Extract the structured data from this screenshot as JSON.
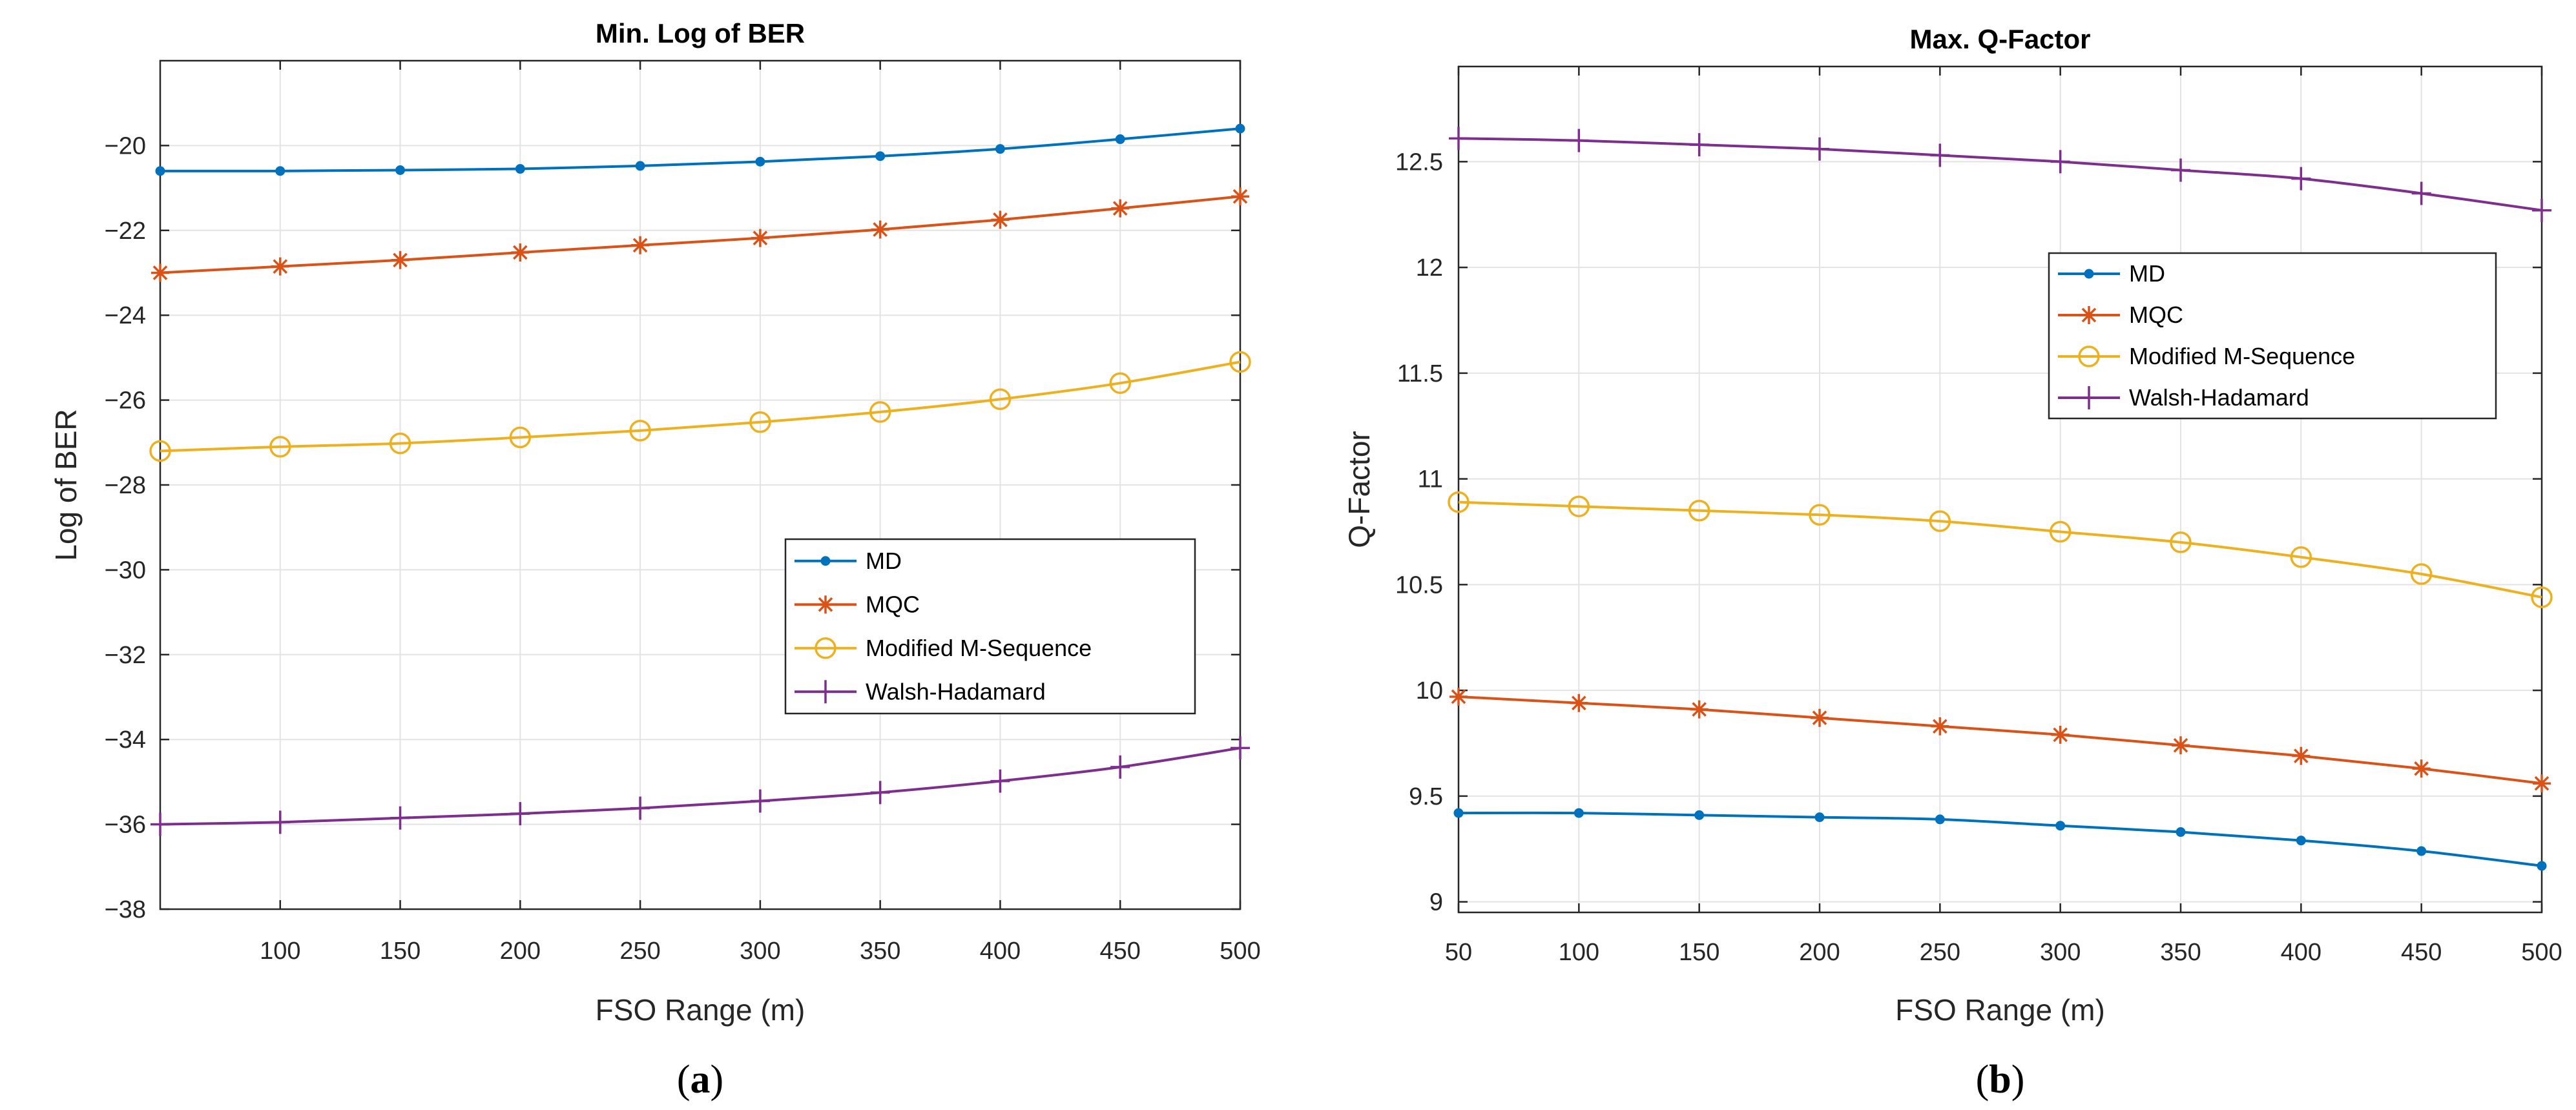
{
  "chart_data": [
    {
      "type": "line",
      "title": "Min. Log of BER",
      "xlabel": "FSO Range (m)",
      "ylabel": "Log of BER",
      "xlim": [
        50,
        500
      ],
      "ylim": [
        -38,
        -18
      ],
      "xticks": [
        100,
        150,
        200,
        250,
        300,
        350,
        400,
        450,
        500
      ],
      "xtick_labels": [
        "100",
        "150",
        "200",
        "250",
        "300",
        "350",
        "400",
        "450",
        "500"
      ],
      "yticks": [
        -38,
        -36,
        -34,
        -32,
        -30,
        -28,
        -26,
        -24,
        -22,
        -20
      ],
      "ytick_labels": [
        "−38",
        "−36",
        "−34",
        "−32",
        "−30",
        "−28",
        "−26",
        "−24",
        "−22",
        "−20"
      ],
      "grid": true,
      "legend_position": "center-right",
      "caption": "(a)",
      "x": [
        50,
        100,
        150,
        200,
        250,
        300,
        350,
        400,
        450,
        500
      ],
      "series": [
        {
          "name": "MD",
          "color": "#0072BD",
          "marker": "dot",
          "values": [
            -20.6,
            -20.6,
            -20.58,
            -20.55,
            -20.48,
            -20.38,
            -20.25,
            -20.08,
            -19.85,
            -19.6
          ]
        },
        {
          "name": "MQC",
          "color": "#D95319",
          "marker": "star",
          "values": [
            -23.0,
            -22.85,
            -22.7,
            -22.52,
            -22.35,
            -22.18,
            -21.98,
            -21.75,
            -21.48,
            -21.2
          ]
        },
        {
          "name": "Modified M-Sequence",
          "color": "#EDB120",
          "marker": "circle",
          "values": [
            -27.2,
            -27.1,
            -27.02,
            -26.88,
            -26.72,
            -26.52,
            -26.28,
            -25.98,
            -25.6,
            -25.1
          ]
        },
        {
          "name": "Walsh-Hadamard",
          "color": "#7E2F8E",
          "marker": "plus",
          "values": [
            -36.0,
            -35.95,
            -35.85,
            -35.75,
            -35.62,
            -35.45,
            -35.25,
            -34.98,
            -34.65,
            -34.2
          ]
        }
      ]
    },
    {
      "type": "line",
      "title": "Max. Q-Factor",
      "xlabel": "FSO Range (m)",
      "ylabel": "Q-Factor",
      "xlim": [
        50,
        500
      ],
      "ylim": [
        8.95,
        12.95
      ],
      "xticks": [
        50,
        100,
        150,
        200,
        250,
        300,
        350,
        400,
        450,
        500
      ],
      "xtick_labels": [
        "50",
        "100",
        "150",
        "200",
        "250",
        "300",
        "350",
        "400",
        "450",
        "500"
      ],
      "yticks": [
        9,
        9.5,
        10,
        10.5,
        11,
        11.5,
        12,
        12.5
      ],
      "ytick_labels": [
        "9",
        "9.5",
        "10",
        "10.5",
        "11",
        "11.5",
        "12",
        "12.5"
      ],
      "grid": true,
      "legend_position": "top-right",
      "caption": "(b)",
      "x": [
        50,
        100,
        150,
        200,
        250,
        300,
        350,
        400,
        450,
        500
      ],
      "series": [
        {
          "name": "MD",
          "color": "#0072BD",
          "marker": "dot",
          "values": [
            9.42,
            9.42,
            9.41,
            9.4,
            9.39,
            9.36,
            9.33,
            9.29,
            9.24,
            9.17
          ]
        },
        {
          "name": "MQC",
          "color": "#D95319",
          "marker": "star",
          "values": [
            9.97,
            9.94,
            9.91,
            9.87,
            9.83,
            9.79,
            9.74,
            9.69,
            9.63,
            9.56
          ]
        },
        {
          "name": "Modified M-Sequence",
          "color": "#EDB120",
          "marker": "circle",
          "values": [
            10.89,
            10.87,
            10.85,
            10.83,
            10.8,
            10.75,
            10.7,
            10.63,
            10.55,
            10.44
          ]
        },
        {
          "name": "Walsh-Hadamard",
          "color": "#7E2F8E",
          "marker": "plus",
          "values": [
            12.61,
            12.6,
            12.58,
            12.56,
            12.53,
            12.5,
            12.46,
            12.42,
            12.35,
            12.27
          ]
        }
      ]
    }
  ]
}
